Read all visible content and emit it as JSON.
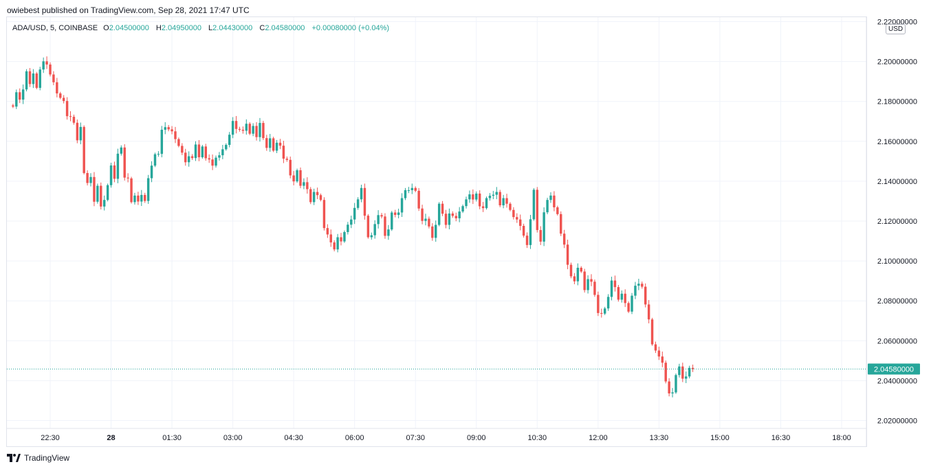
{
  "header": {
    "published": "owiebest published on TradingView.com, Sep 28, 2021 17:47 UTC"
  },
  "legend": {
    "symbol": "ADA/USD, 5, COINBASE",
    "o_label": "O",
    "o_value": "2.04500000",
    "h_label": "H",
    "h_value": "2.04950000",
    "l_label": "L",
    "l_value": "2.04430000",
    "c_label": "C",
    "c_value": "2.04580000",
    "change": "+0.00080000 (+0.04%)"
  },
  "currency_label": "USD",
  "footer": {
    "brand": "TradingView"
  },
  "colors": {
    "up": "#26a69a",
    "down": "#ef5350",
    "grid": "#f0f3fa",
    "accent": "#26a69a"
  },
  "chart_data": {
    "type": "candlestick",
    "title": "ADA/USD, 5, COINBASE",
    "ylim": [
      2.01,
      2.22
    ],
    "y_ticks": [
      "2.22000000",
      "2.20000000",
      "2.18000000",
      "2.16000000",
      "2.14000000",
      "2.12000000",
      "2.10000000",
      "2.08000000",
      "2.06000000",
      "2.04000000",
      "2.02000000"
    ],
    "y_tick_values": [
      2.22,
      2.2,
      2.18,
      2.16,
      2.14,
      2.12,
      2.1,
      2.08,
      2.06,
      2.04,
      2.02
    ],
    "x_ticks": [
      "22:30",
      "28",
      "01:30",
      "03:00",
      "04:30",
      "06:00",
      "07:30",
      "09:00",
      "10:30",
      "12:00",
      "13:30",
      "15:00",
      "16:30",
      "18:00"
    ],
    "x_tick_hours": [
      22.5,
      24,
      25.5,
      27,
      28.5,
      30,
      31.5,
      33,
      34.5,
      36,
      37.5,
      39,
      40.5,
      42
    ],
    "x_bold": [
      "28"
    ],
    "x_range_hours": [
      21.5,
      42.5
    ],
    "bar_minutes": 5,
    "first_bar_hour": 21.5833,
    "last_price": 2.0458,
    "last_price_label": "2.04580000",
    "closes": [
      2.1774,
      2.1846,
      2.1809,
      2.186,
      2.1951,
      2.1887,
      2.194,
      2.1868,
      2.196,
      2.2001,
      2.1985,
      2.1935,
      2.1896,
      2.184,
      2.1818,
      2.1802,
      2.1726,
      2.1723,
      2.1693,
      2.1605,
      2.1672,
      2.1441,
      2.1391,
      2.1421,
      2.1297,
      2.1377,
      2.1273,
      2.1306,
      2.138,
      2.1479,
      2.1412,
      2.1538,
      2.1569,
      2.1418,
      2.1414,
      2.1295,
      2.1328,
      2.1298,
      2.1331,
      2.1301,
      2.1415,
      2.1478,
      2.1535,
      2.1537,
      2.1658,
      2.1671,
      2.166,
      2.165,
      2.1611,
      2.1577,
      2.1543,
      2.1495,
      2.1525,
      2.1516,
      2.1584,
      2.152,
      2.1574,
      2.1515,
      2.1509,
      2.1478,
      2.1518,
      2.153,
      2.156,
      2.1582,
      2.1633,
      2.1702,
      2.1662,
      2.1658,
      2.1653,
      2.1688,
      2.1638,
      2.1677,
      2.1621,
      2.1692,
      2.1616,
      2.1567,
      2.1615,
      2.1553,
      2.1593,
      2.1578,
      2.1513,
      2.1507,
      2.1429,
      2.1399,
      2.1455,
      2.1377,
      2.1395,
      2.136,
      2.1295,
      2.1346,
      2.133,
      2.1306,
      2.1165,
      2.1133,
      2.1093,
      2.1058,
      2.1119,
      2.1098,
      2.1145,
      2.1182,
      2.1208,
      2.1266,
      2.1309,
      2.1366,
      2.1227,
      2.1119,
      2.1129,
      2.1185,
      2.123,
      2.1223,
      2.1126,
      2.1158,
      2.1243,
      2.1231,
      2.1243,
      2.1315,
      2.1355,
      2.1355,
      2.1366,
      2.1352,
      2.1263,
      2.1201,
      2.1212,
      2.1173,
      2.1116,
      2.1181,
      2.1287,
      2.1237,
      2.1181,
      2.1238,
      2.1226,
      2.1214,
      2.1248,
      2.1275,
      2.1309,
      2.1334,
      2.1308,
      2.1338,
      2.1274,
      2.1265,
      2.1315,
      2.1327,
      2.1332,
      2.1346,
      2.1279,
      2.1315,
      2.1287,
      2.1256,
      2.122,
      2.1208,
      2.1176,
      2.1127,
      2.108,
      2.1209,
      2.1357,
      2.1155,
      2.1097,
      2.1244,
      2.1306,
      2.1328,
      2.1269,
      2.1235,
      2.1137,
      2.1082,
      2.0981,
      2.0923,
      2.0898,
      2.0966,
      2.0947,
      2.0854,
      2.0909,
      2.0896,
      2.083,
      2.0739,
      2.0736,
      2.0762,
      2.082,
      2.0902,
      2.0869,
      2.0806,
      2.0836,
      2.0789,
      2.0746,
      2.0826,
      2.0876,
      2.0886,
      2.0871,
      2.0782,
      2.0707,
      2.0582,
      2.0551,
      2.0521,
      2.049,
      2.0396,
      2.0336,
      2.0341,
      2.0428,
      2.0471,
      2.041,
      2.0421,
      2.0464,
      2.0458
    ]
  }
}
